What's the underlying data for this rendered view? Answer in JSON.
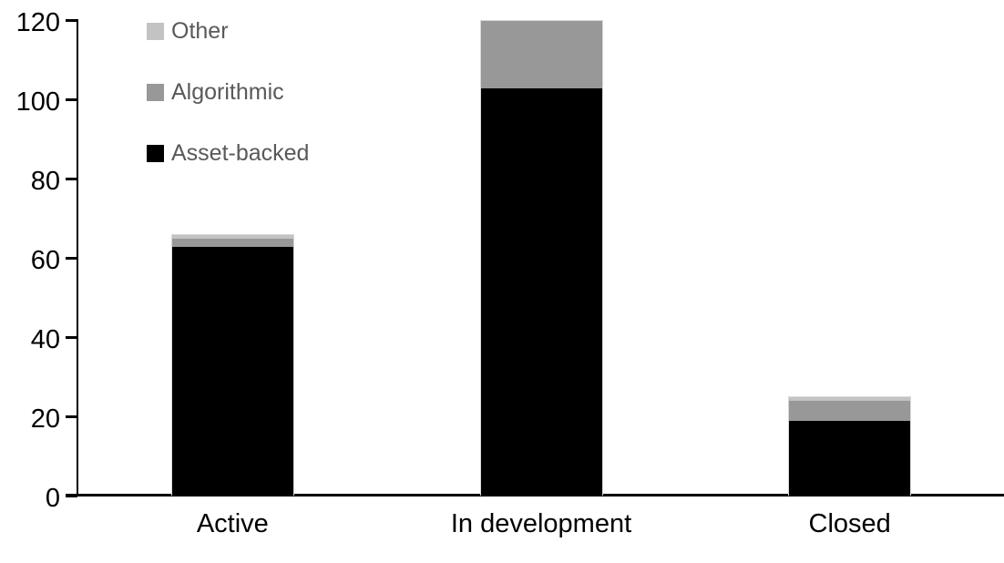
{
  "chart_data": {
    "type": "bar",
    "stacked": true,
    "title": "",
    "xlabel": "",
    "ylabel": "",
    "categories": [
      "Active",
      "In development",
      "Closed"
    ],
    "series": [
      {
        "name": "Asset-backed",
        "color": "#000000",
        "values": [
          63,
          103,
          19
        ]
      },
      {
        "name": "Algorithmic",
        "color": "#989898",
        "values": [
          2,
          17,
          5
        ]
      },
      {
        "name": "Other",
        "color": "#c3c3c3",
        "values": [
          1,
          0,
          1
        ]
      }
    ],
    "stack_totals": [
      66,
      120,
      25
    ],
    "ylim": [
      0,
      120
    ],
    "yticks": [
      0,
      20,
      40,
      60,
      80,
      100,
      120
    ],
    "grid": false,
    "axis_color": "#000000",
    "legend": {
      "position": "top-left",
      "orientation": "vertical",
      "text_color": "#595959",
      "entries": [
        {
          "label": "Other",
          "color": "#c3c3c3"
        },
        {
          "label": "Algorithmic",
          "color": "#989898"
        },
        {
          "label": "Asset-backed",
          "color": "#000000"
        }
      ]
    }
  }
}
